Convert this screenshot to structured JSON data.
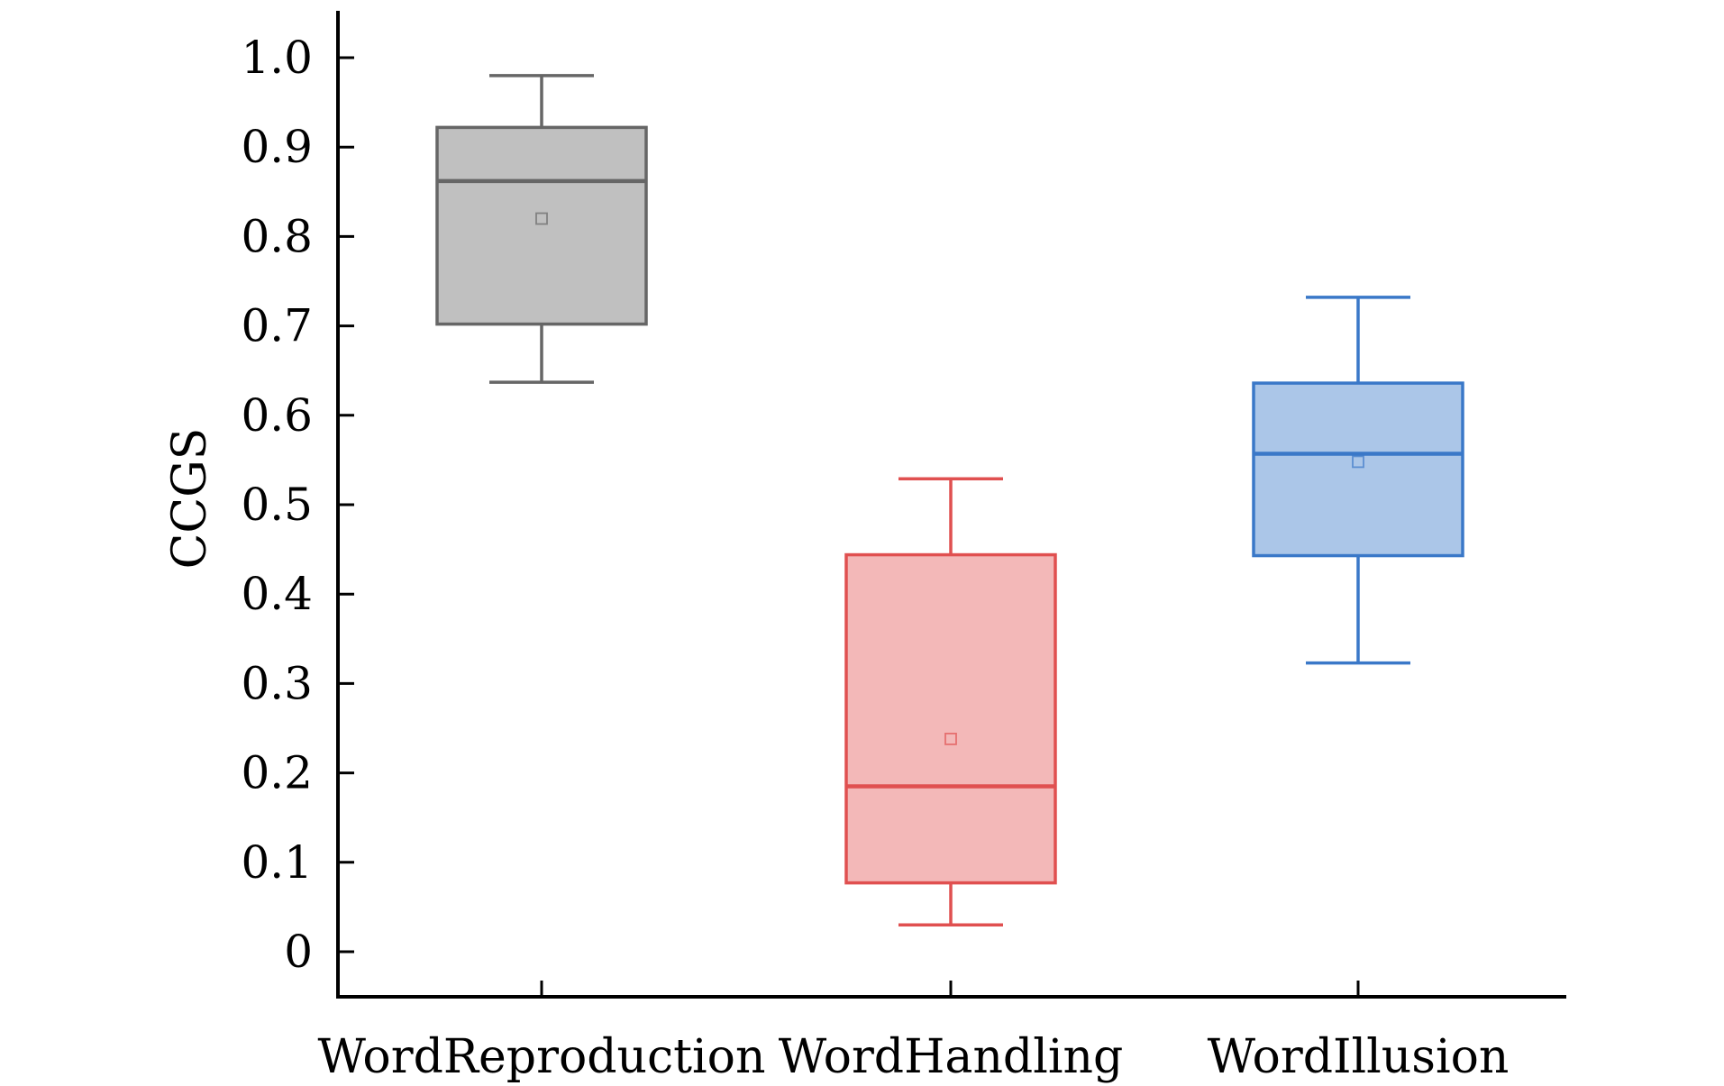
{
  "chart_data": {
    "type": "box",
    "title": "",
    "xlabel": "",
    "ylabel": "CCGS",
    "ylim": [
      -0.05,
      1.05
    ],
    "yticks": [
      0,
      0.1,
      0.2,
      0.3,
      0.4,
      0.5,
      0.6,
      0.7,
      0.8,
      0.9,
      1.0
    ],
    "ytick_labels": [
      "0",
      "0.1",
      "0.2",
      "0.3",
      "0.4",
      "0.5",
      "0.6",
      "0.7",
      "0.8",
      "0.9",
      "1.0"
    ],
    "grid": false,
    "legend": "none",
    "categories": [
      "WordReproduction",
      "WordHandling",
      "WordIllusion"
    ],
    "series": [
      {
        "category": "WordReproduction",
        "whisker_low": 0.637,
        "q1": 0.702,
        "median": 0.862,
        "q3": 0.922,
        "whisker_high": 0.98,
        "mean": 0.82,
        "stroke": "#666666",
        "fill": "#c0c0c0"
      },
      {
        "category": "WordHandling",
        "whisker_low": 0.03,
        "q1": 0.077,
        "median": 0.185,
        "q3": 0.444,
        "whisker_high": 0.529,
        "mean": 0.238,
        "stroke": "#e05050",
        "fill": "#f3b8b8"
      },
      {
        "category": "WordIllusion",
        "whisker_low": 0.323,
        "q1": 0.443,
        "median": 0.557,
        "q3": 0.636,
        "whisker_high": 0.732,
        "mean": 0.548,
        "stroke": "#3a78c8",
        "fill": "#abc6e8"
      }
    ]
  }
}
